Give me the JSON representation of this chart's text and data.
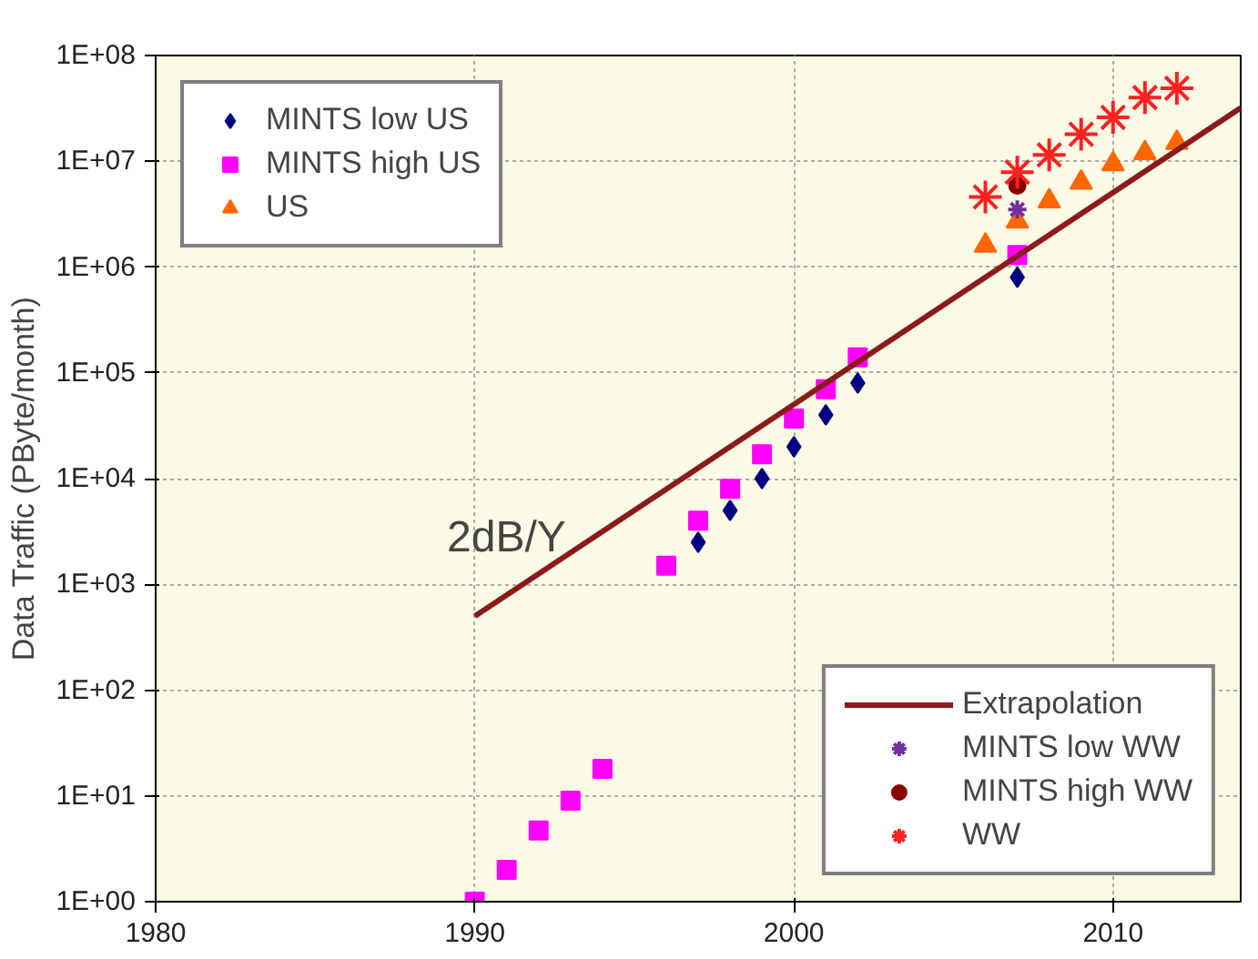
{
  "chart_data": {
    "type": "scatter",
    "ylabel": "Data Traffic (PByte/month)",
    "log": "y",
    "xlim": [
      1980,
      2014
    ],
    "ylim": [
      1,
      100000000
    ],
    "xticks": [
      1980,
      1990,
      2000,
      2010
    ],
    "yticks": [
      {
        "value": 1,
        "label": "1E+00"
      },
      {
        "value": 10,
        "label": "1E+01"
      },
      {
        "value": 100,
        "label": "1E+02"
      },
      {
        "value": 1000,
        "label": "1E+03"
      },
      {
        "value": 10000,
        "label": "1E+04"
      },
      {
        "value": 100000,
        "label": "1E+05"
      },
      {
        "value": 1000000,
        "label": "1E+06"
      },
      {
        "value": 10000000,
        "label": "1E+07"
      },
      {
        "value": 100000000,
        "label": "1E+08"
      }
    ],
    "grid": true,
    "legend": "top left",
    "annotations": [
      "2dB/Y"
    ],
    "series": [
      {
        "name": "MINTS low US",
        "color": "#000080",
        "marker": "diamond",
        "x": [
          1997,
          1998,
          1999,
          2000,
          2001,
          2002,
          2007
        ],
        "values": [
          2500,
          5000,
          10000,
          20000,
          40000,
          80000,
          800000
        ]
      },
      {
        "name": "MINTS high US",
        "color": "#ff00ff",
        "marker": "square",
        "x": [
          1990,
          1991,
          1992,
          1993,
          1994,
          1996,
          1997,
          1998,
          1999,
          2000,
          2001,
          2002,
          2007
        ],
        "values": [
          1,
          2,
          4.7,
          9,
          18,
          1500,
          4000,
          8000,
          17000,
          37000,
          70000,
          140000,
          1300000
        ]
      },
      {
        "name": "US",
        "color": "#ff6600",
        "marker": "triangle",
        "x": [
          2006,
          2007,
          2008,
          2009,
          2010,
          2011,
          2012
        ],
        "values": [
          1600000,
          2700000,
          4200000,
          6300000,
          9400000,
          12000000,
          15000000
        ]
      },
      {
        "name": "Extrapolation",
        "type": "line",
        "color": "#8b1a1a",
        "marker": "none",
        "x": [
          1990,
          2014
        ],
        "values": [
          500,
          32000000
        ]
      },
      {
        "name": "MINTS low WW",
        "color": "#7030a0",
        "marker": "cross",
        "x": [
          2007
        ],
        "values": [
          3500000
        ]
      },
      {
        "name": "MINTS high WW",
        "color": "#8b0000",
        "marker": "circle",
        "x": [
          2007
        ],
        "values": [
          5900000
        ]
      },
      {
        "name": "WW",
        "color": "#ff2020",
        "marker": "cross",
        "x": [
          2006,
          2007,
          2008,
          2009,
          2010,
          2011,
          2012
        ],
        "values": [
          4600000,
          7900000,
          11500000,
          18000000,
          26000000,
          40000000,
          49000000
        ]
      }
    ]
  }
}
